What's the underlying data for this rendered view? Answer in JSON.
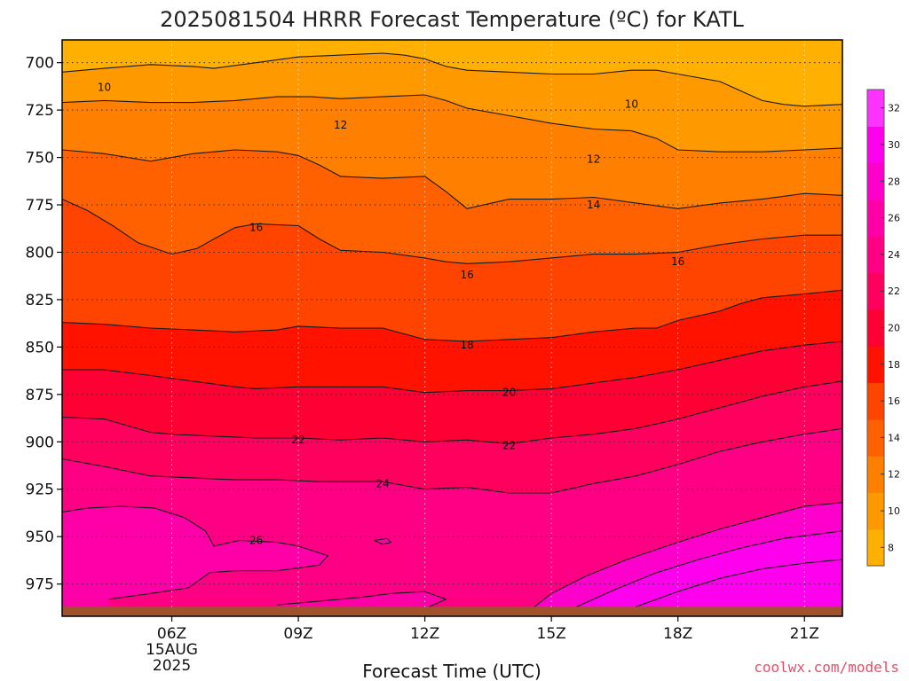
{
  "chart_data": {
    "type": "contour",
    "title": "2025081504 HRRR Forecast Temperature (ºC) for KATL",
    "xlabel": "Forecast Time (UTC)",
    "ylabel": "",
    "credit": "coolwx.com/models",
    "x_range_hours_utc": [
      3.4,
      21.9
    ],
    "y_range_hpa": [
      688,
      992
    ],
    "y_scale": "linear-inverted",
    "grid": "dotted",
    "x_ticks": [
      {
        "hour": 6,
        "label": "06Z",
        "sub": [
          "15AUG",
          "2025"
        ]
      },
      {
        "hour": 9,
        "label": "09Z"
      },
      {
        "hour": 12,
        "label": "12Z"
      },
      {
        "hour": 15,
        "label": "15Z"
      },
      {
        "hour": 18,
        "label": "18Z"
      },
      {
        "hour": 21,
        "label": "21Z"
      }
    ],
    "y_ticks": [
      {
        "p": 700,
        "label": "700"
      },
      {
        "p": 725,
        "label": "725"
      },
      {
        "p": 750,
        "label": "750"
      },
      {
        "p": 775,
        "label": "775"
      },
      {
        "p": 800,
        "label": "800"
      },
      {
        "p": 825,
        "label": "825"
      },
      {
        "p": 850,
        "label": "850"
      },
      {
        "p": 875,
        "label": "875"
      },
      {
        "p": 900,
        "label": "900"
      },
      {
        "p": 925,
        "label": "925"
      },
      {
        "p": 950,
        "label": "950"
      },
      {
        "p": 975,
        "label": "975"
      }
    ],
    "surface_color": "#a0522d",
    "surface_pressure_hpa": 987,
    "fill_colors": [
      {
        "min": 8,
        "color": "#ffb000"
      },
      {
        "min": 10,
        "color": "#ff9900"
      },
      {
        "min": 12,
        "color": "#ff7f00"
      },
      {
        "min": 14,
        "color": "#ff6100"
      },
      {
        "min": 16,
        "color": "#ff4400"
      },
      {
        "min": 18,
        "color": "#ff1200"
      },
      {
        "min": 20,
        "color": "#ff0035"
      },
      {
        "min": 22,
        "color": "#ff005e"
      },
      {
        "min": 24,
        "color": "#ff0085"
      },
      {
        "min": 26,
        "color": "#ff00a8"
      },
      {
        "min": 28,
        "color": "#ff00cc"
      },
      {
        "min": 30,
        "color": "#ff00ee"
      }
    ],
    "contours": [
      {
        "value": 10,
        "label": "10",
        "label_at": [
          [
            4.4,
            713
          ],
          [
            16.9,
            722
          ]
        ],
        "points": [
          [
            3.4,
            705
          ],
          [
            4.4,
            703
          ],
          [
            5.5,
            701
          ],
          [
            6.5,
            702
          ],
          [
            7.0,
            703
          ],
          [
            8.0,
            700
          ],
          [
            9.0,
            697
          ],
          [
            10.0,
            696
          ],
          [
            11.0,
            695
          ],
          [
            11.5,
            696
          ],
          [
            12.0,
            698
          ],
          [
            12.5,
            702
          ],
          [
            13.0,
            704
          ],
          [
            14.0,
            705
          ],
          [
            15.0,
            706
          ],
          [
            16.0,
            706
          ],
          [
            16.9,
            704
          ],
          [
            17.5,
            704
          ],
          [
            18.0,
            706
          ],
          [
            19.0,
            710
          ],
          [
            19.5,
            715
          ],
          [
            20.0,
            720
          ],
          [
            20.5,
            722
          ],
          [
            21.0,
            723
          ],
          [
            21.9,
            722
          ]
        ]
      },
      {
        "value": 12,
        "label": "12",
        "label_at": [
          [
            10.0,
            733
          ],
          [
            16.0,
            751
          ]
        ],
        "points": [
          [
            3.4,
            721
          ],
          [
            4.4,
            720
          ],
          [
            5.5,
            721
          ],
          [
            6.5,
            721
          ],
          [
            7.5,
            720
          ],
          [
            8.5,
            718
          ],
          [
            9.3,
            718
          ],
          [
            10.0,
            719
          ],
          [
            11.0,
            718
          ],
          [
            12.0,
            717
          ],
          [
            12.5,
            720
          ],
          [
            13.0,
            724
          ],
          [
            14.0,
            728
          ],
          [
            15.0,
            732
          ],
          [
            16.0,
            735
          ],
          [
            16.9,
            736
          ],
          [
            17.5,
            740
          ],
          [
            18.0,
            746
          ],
          [
            19.0,
            747
          ],
          [
            20.0,
            747
          ],
          [
            21.0,
            746
          ],
          [
            21.9,
            745
          ]
        ]
      },
      {
        "value": 14,
        "label": "14",
        "label_at": [
          [
            16.0,
            775
          ]
        ],
        "points": [
          [
            3.4,
            746
          ],
          [
            4.4,
            748
          ],
          [
            5.5,
            752
          ],
          [
            6.5,
            748
          ],
          [
            7.5,
            746
          ],
          [
            8.5,
            747
          ],
          [
            9.0,
            749
          ],
          [
            9.5,
            754
          ],
          [
            10.0,
            760
          ],
          [
            11.0,
            761
          ],
          [
            12.0,
            760
          ],
          [
            12.5,
            768
          ],
          [
            13.0,
            777
          ],
          [
            14.0,
            772
          ],
          [
            15.0,
            772
          ],
          [
            16.0,
            771
          ],
          [
            17.0,
            774
          ],
          [
            18.0,
            777
          ],
          [
            19.0,
            774
          ],
          [
            20.0,
            772
          ],
          [
            21.0,
            769
          ],
          [
            21.9,
            770
          ]
        ]
      },
      {
        "value": 16,
        "label": "16",
        "label_at": [
          [
            8.0,
            787
          ],
          [
            13.0,
            812
          ],
          [
            18.0,
            805
          ]
        ],
        "points": [
          [
            3.4,
            772
          ],
          [
            4.0,
            778
          ],
          [
            4.6,
            786
          ],
          [
            5.2,
            795
          ],
          [
            6.0,
            801
          ],
          [
            6.6,
            798
          ],
          [
            7.0,
            793
          ],
          [
            7.5,
            787
          ],
          [
            8.0,
            785
          ],
          [
            9.0,
            786
          ],
          [
            9.5,
            793
          ],
          [
            10.0,
            799
          ],
          [
            11.0,
            800
          ],
          [
            12.0,
            803
          ],
          [
            12.5,
            805
          ],
          [
            13.0,
            806
          ],
          [
            14.0,
            805
          ],
          [
            15.0,
            803
          ],
          [
            16.0,
            801
          ],
          [
            17.0,
            801
          ],
          [
            18.0,
            800
          ],
          [
            19.0,
            796
          ],
          [
            20.0,
            793
          ],
          [
            21.0,
            791
          ],
          [
            21.9,
            791
          ]
        ]
      },
      {
        "value": 18,
        "label": "18",
        "label_at": [
          [
            13.0,
            849
          ]
        ],
        "points": [
          [
            3.4,
            837
          ],
          [
            4.4,
            838
          ],
          [
            5.5,
            840
          ],
          [
            6.5,
            841
          ],
          [
            7.5,
            842
          ],
          [
            8.5,
            841
          ],
          [
            9.0,
            839
          ],
          [
            10.0,
            840
          ],
          [
            11.0,
            840
          ],
          [
            12.0,
            846
          ],
          [
            13.0,
            847
          ],
          [
            14.0,
            846
          ],
          [
            15.0,
            845
          ],
          [
            16.0,
            842
          ],
          [
            17.0,
            840
          ],
          [
            17.5,
            840
          ],
          [
            18.0,
            836
          ],
          [
            19.0,
            831
          ],
          [
            19.5,
            827
          ],
          [
            20.0,
            824
          ],
          [
            21.0,
            822
          ],
          [
            21.9,
            820
          ]
        ]
      },
      {
        "value": 20,
        "label": "20",
        "label_at": [
          [
            14.0,
            874
          ]
        ],
        "points": [
          [
            3.4,
            862
          ],
          [
            4.4,
            862
          ],
          [
            5.5,
            865
          ],
          [
            6.5,
            868
          ],
          [
            7.5,
            871
          ],
          [
            8.0,
            872
          ],
          [
            9.0,
            871
          ],
          [
            10.0,
            871
          ],
          [
            11.0,
            871
          ],
          [
            12.0,
            874
          ],
          [
            13.0,
            873
          ],
          [
            14.0,
            873
          ],
          [
            15.0,
            872
          ],
          [
            16.0,
            869
          ],
          [
            17.0,
            866
          ],
          [
            18.0,
            862
          ],
          [
            19.0,
            857
          ],
          [
            20.0,
            852
          ],
          [
            21.0,
            849
          ],
          [
            21.9,
            847
          ]
        ]
      },
      {
        "value": 22,
        "label": "22",
        "label_at": [
          [
            9.0,
            899
          ],
          [
            14.0,
            902
          ]
        ],
        "points": [
          [
            3.4,
            887
          ],
          [
            4.4,
            888
          ],
          [
            5.5,
            895
          ],
          [
            6.0,
            896
          ],
          [
            7.0,
            897
          ],
          [
            8.0,
            898
          ],
          [
            9.0,
            898
          ],
          [
            10.0,
            899
          ],
          [
            11.0,
            898
          ],
          [
            12.0,
            900
          ],
          [
            13.0,
            899
          ],
          [
            14.0,
            901
          ],
          [
            15.0,
            898
          ],
          [
            16.0,
            896
          ],
          [
            17.0,
            893
          ],
          [
            18.0,
            888
          ],
          [
            19.0,
            882
          ],
          [
            20.0,
            876
          ],
          [
            21.0,
            871
          ],
          [
            21.9,
            868
          ]
        ]
      },
      {
        "value": 24,
        "label": "24",
        "label_at": [
          [
            11.0,
            922
          ]
        ],
        "points": [
          [
            3.4,
            909
          ],
          [
            4.4,
            913
          ],
          [
            5.5,
            918
          ],
          [
            6.5,
            919
          ],
          [
            7.5,
            920
          ],
          [
            8.5,
            920
          ],
          [
            9.5,
            921
          ],
          [
            10.5,
            921
          ],
          [
            11.0,
            921
          ],
          [
            12.0,
            925
          ],
          [
            13.0,
            924
          ],
          [
            14.0,
            927
          ],
          [
            15.0,
            927
          ],
          [
            16.0,
            922
          ],
          [
            17.0,
            918
          ],
          [
            18.0,
            912
          ],
          [
            19.0,
            905
          ],
          [
            20.0,
            900
          ],
          [
            21.0,
            896
          ],
          [
            21.9,
            893
          ]
        ]
      },
      {
        "value": 26,
        "label": "26",
        "label_at": [
          [
            8.0,
            952
          ]
        ],
        "points": [
          [
            3.4,
            937
          ],
          [
            4.0,
            935
          ],
          [
            4.8,
            934
          ],
          [
            5.6,
            935
          ],
          [
            6.3,
            940
          ],
          [
            6.8,
            947
          ],
          [
            7.0,
            955
          ],
          [
            7.6,
            952
          ],
          [
            8.5,
            953
          ],
          [
            9.0,
            955
          ],
          [
            9.7,
            960
          ],
          [
            9.5,
            965
          ],
          [
            8.5,
            968
          ],
          [
            7.5,
            968
          ],
          [
            6.9,
            969
          ],
          [
            6.4,
            977
          ],
          [
            5.5,
            980
          ],
          [
            4.5,
            983
          ]
        ]
      },
      {
        "value": 26,
        "label": "",
        "points": [
          [
            12.1,
            987
          ],
          [
            12.5,
            983
          ],
          [
            12.0,
            979
          ],
          [
            11.2,
            980
          ],
          [
            10.5,
            982
          ],
          [
            9.5,
            984
          ],
          [
            8.5,
            986
          ]
        ]
      },
      {
        "value": 26,
        "label": "",
        "points": [
          [
            10.8,
            952
          ],
          [
            11.1,
            951
          ],
          [
            11.2,
            953
          ],
          [
            11.0,
            954
          ],
          [
            10.8,
            952
          ]
        ]
      },
      {
        "value": 28,
        "label": "",
        "points": [
          [
            14.6,
            987
          ],
          [
            15.0,
            980
          ],
          [
            15.8,
            971
          ],
          [
            16.8,
            962
          ],
          [
            18.0,
            953
          ],
          [
            19.0,
            946
          ],
          [
            20.0,
            940
          ],
          [
            21.0,
            934
          ],
          [
            21.9,
            932
          ]
        ]
      },
      {
        "value": 30,
        "label": "",
        "points": [
          [
            15.6,
            987
          ],
          [
            16.5,
            978
          ],
          [
            17.5,
            969
          ],
          [
            18.5,
            962
          ],
          [
            19.5,
            956
          ],
          [
            20.5,
            951
          ],
          [
            21.9,
            947
          ]
        ]
      },
      {
        "value": 32,
        "label": "",
        "points": [
          [
            17.0,
            987
          ],
          [
            18.0,
            979
          ],
          [
            19.0,
            972
          ],
          [
            20.0,
            967
          ],
          [
            21.0,
            964
          ],
          [
            21.9,
            962
          ]
        ]
      }
    ],
    "colorbar": {
      "colors": [
        "#ffb000",
        "#ff9900",
        "#ff7f00",
        "#ff6100",
        "#ff4400",
        "#ff1200",
        "#ff0035",
        "#ff005e",
        "#ff0085",
        "#ff00a8",
        "#ff00cc",
        "#ff00ee",
        "#ff33ff"
      ],
      "ticks": [
        "8",
        "10",
        "12",
        "14",
        "16",
        "18",
        "20",
        "22",
        "24",
        "26",
        "28",
        "30",
        "32"
      ]
    }
  }
}
